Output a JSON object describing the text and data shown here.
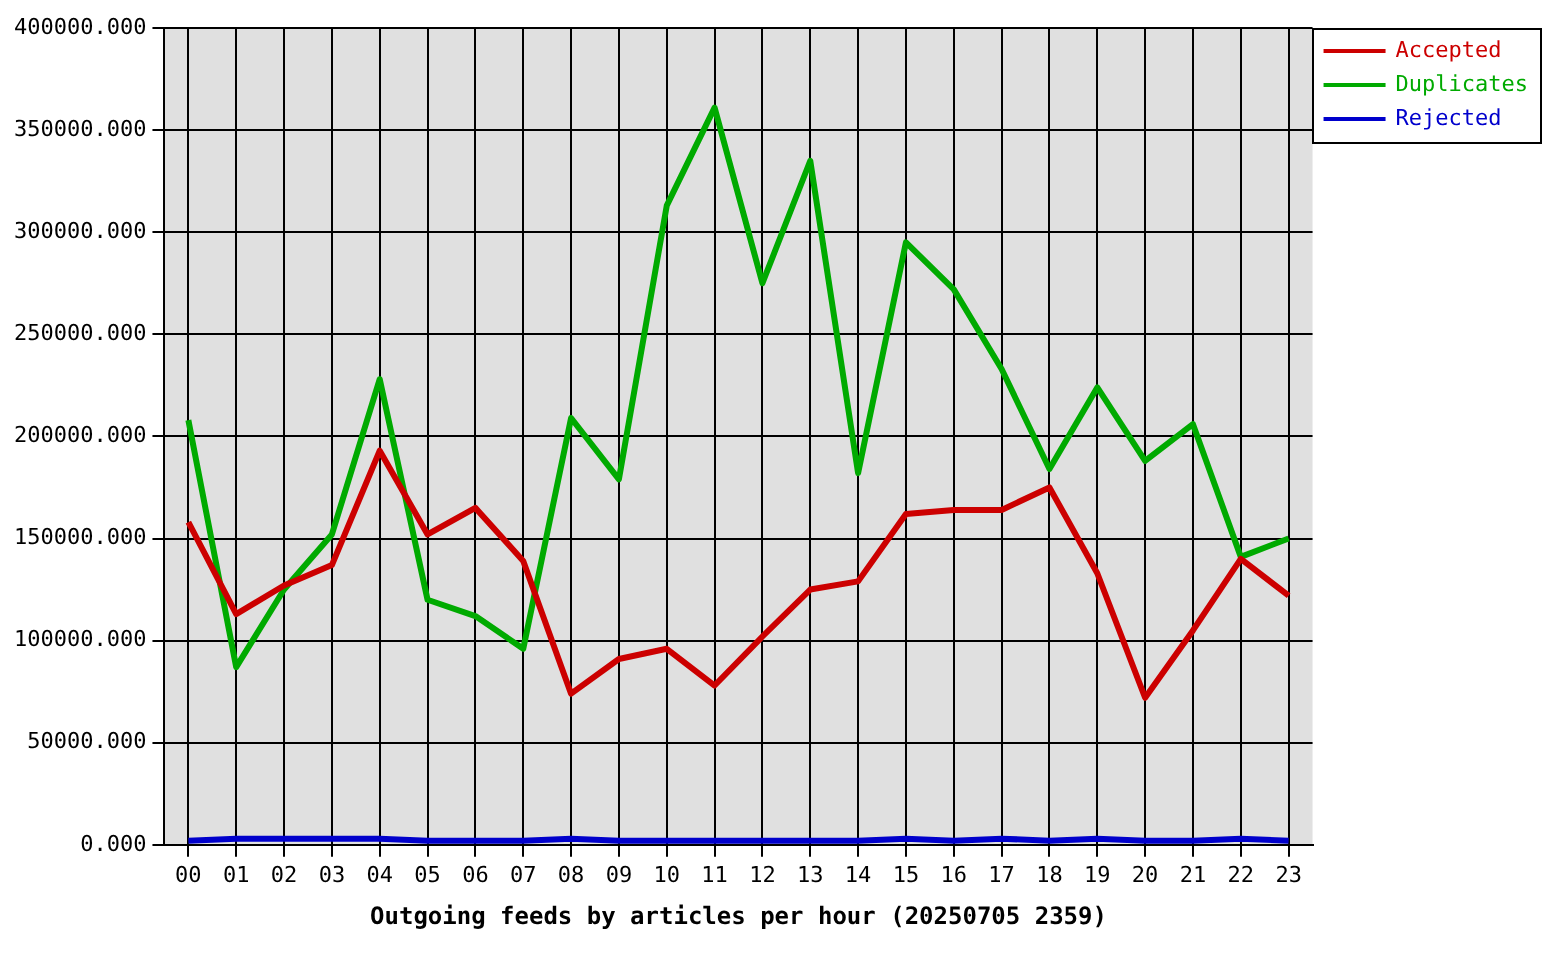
{
  "chart_data": {
    "type": "line",
    "xlabel": "Outgoing feeds by articles per hour (20250705 2359)",
    "categories": [
      "00",
      "01",
      "02",
      "03",
      "04",
      "05",
      "06",
      "07",
      "08",
      "09",
      "10",
      "11",
      "12",
      "13",
      "14",
      "15",
      "16",
      "17",
      "18",
      "19",
      "20",
      "21",
      "22",
      "23"
    ],
    "series": [
      {
        "name": "Accepted",
        "color": "#cc0000",
        "values": [
          158000,
          113000,
          127000,
          137000,
          193000,
          152000,
          165000,
          139000,
          74000,
          91000,
          96000,
          78000,
          102000,
          125000,
          129000,
          162000,
          164000,
          164000,
          175000,
          133000,
          72000,
          105000,
          140000,
          122000
        ]
      },
      {
        "name": "Duplicates",
        "color": "#00aa00",
        "values": [
          208000,
          87000,
          125000,
          152000,
          228000,
          120000,
          112000,
          96000,
          209000,
          179000,
          313000,
          361000,
          275000,
          335000,
          182000,
          295000,
          272000,
          233000,
          184000,
          224000,
          188000,
          206000,
          141000,
          150000
        ]
      },
      {
        "name": "Rejected",
        "color": "#0000cc",
        "values": [
          2000,
          3000,
          3000,
          3000,
          3000,
          2000,
          2000,
          2000,
          3000,
          2000,
          2000,
          2000,
          2000,
          2000,
          2000,
          3000,
          2000,
          3000,
          2000,
          3000,
          2000,
          2000,
          3000,
          2000
        ]
      }
    ],
    "ylim": [
      0,
      400000
    ],
    "yticks": [
      {
        "value": 0,
        "label": "0.000"
      },
      {
        "value": 50000,
        "label": "50000.000"
      },
      {
        "value": 100000,
        "label": "100000.000"
      },
      {
        "value": 150000,
        "label": "150000.000"
      },
      {
        "value": 200000,
        "label": "200000.000"
      },
      {
        "value": 250000,
        "label": "250000.000"
      },
      {
        "value": 300000,
        "label": "300000.000"
      },
      {
        "value": 350000,
        "label": "350000.000"
      },
      {
        "value": 400000,
        "label": "400000.000"
      }
    ],
    "grid": true,
    "legend": "top right",
    "marker": "none",
    "line_style": "solid"
  }
}
